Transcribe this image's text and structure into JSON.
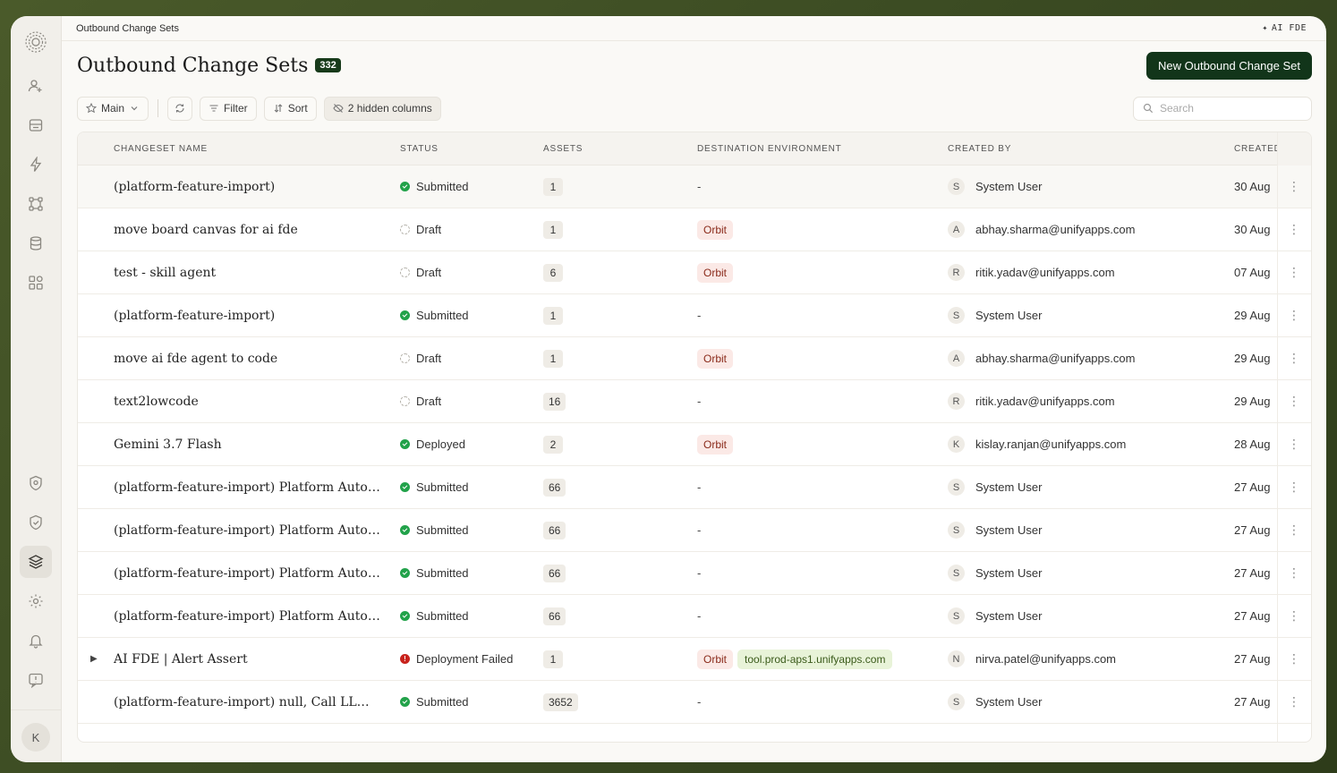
{
  "breadcrumb": "Outbound Change Sets",
  "ai_label": "AI FDE",
  "page": {
    "title": "Outbound Change Sets",
    "count": "332",
    "new_button": "New Outbound Change Set"
  },
  "toolbar": {
    "view_label": "Main",
    "filter_label": "Filter",
    "sort_label": "Sort",
    "hidden_columns_label": "2 hidden columns",
    "search_placeholder": "Search"
  },
  "sidebar": {
    "avatar_initial": "K"
  },
  "columns": {
    "name": "CHANGESET NAME",
    "status": "STATUS",
    "assets": "ASSETS",
    "destination": "DESTINATION ENVIRONMENT",
    "created_by": "CREATED BY",
    "created": "CREATED"
  },
  "rows": [
    {
      "name": "(platform-feature-import)",
      "status": "Submitted",
      "status_type": "ok",
      "assets": "1",
      "dest": "-",
      "env": "",
      "initial": "S",
      "by": "System User",
      "created": "30 Aug"
    },
    {
      "name": "move board canvas for ai fde",
      "status": "Draft",
      "status_type": "draft",
      "assets": "1",
      "dest": "Orbit",
      "env": "",
      "initial": "A",
      "by": "abhay.sharma@unifyapps.com",
      "created": "30 Aug"
    },
    {
      "name": "test - skill agent",
      "status": "Draft",
      "status_type": "draft",
      "assets": "6",
      "dest": "Orbit",
      "env": "",
      "initial": "R",
      "by": "ritik.yadav@unifyapps.com",
      "created": "07 Aug"
    },
    {
      "name": "(platform-feature-import)",
      "status": "Submitted",
      "status_type": "ok",
      "assets": "1",
      "dest": "-",
      "env": "",
      "initial": "S",
      "by": "System User",
      "created": "29 Aug"
    },
    {
      "name": "move ai fde agent to code",
      "status": "Draft",
      "status_type": "draft",
      "assets": "1",
      "dest": "Orbit",
      "env": "",
      "initial": "A",
      "by": "abhay.sharma@unifyapps.com",
      "created": "29 Aug"
    },
    {
      "name": "text2lowcode",
      "status": "Draft",
      "status_type": "draft",
      "assets": "16",
      "dest": "-",
      "env": "",
      "initial": "R",
      "by": "ritik.yadav@unifyapps.com",
      "created": "29 Aug"
    },
    {
      "name": "Gemini 3.7 Flash",
      "status": "Deployed",
      "status_type": "ok",
      "assets": "2",
      "dest": "Orbit",
      "env": "",
      "initial": "K",
      "by": "kislay.ranjan@unifyapps.com",
      "created": "28 Aug"
    },
    {
      "name": "(platform-feature-import) Platform Autom...",
      "status": "Submitted",
      "status_type": "ok",
      "assets": "66",
      "dest": "-",
      "env": "",
      "initial": "S",
      "by": "System User",
      "created": "27 Aug"
    },
    {
      "name": "(platform-feature-import) Platform Autom...",
      "status": "Submitted",
      "status_type": "ok",
      "assets": "66",
      "dest": "-",
      "env": "",
      "initial": "S",
      "by": "System User",
      "created": "27 Aug"
    },
    {
      "name": "(platform-feature-import) Platform Autom...",
      "status": "Submitted",
      "status_type": "ok",
      "assets": "66",
      "dest": "-",
      "env": "",
      "initial": "S",
      "by": "System User",
      "created": "27 Aug"
    },
    {
      "name": "(platform-feature-import) Platform Autom...",
      "status": "Submitted",
      "status_type": "ok",
      "assets": "66",
      "dest": "-",
      "env": "",
      "initial": "S",
      "by": "System User",
      "created": "27 Aug"
    },
    {
      "name": "AI FDE | Alert Assert",
      "status": "Deployment Failed",
      "status_type": "fail",
      "assets": "1",
      "dest": "Orbit",
      "env": "tool.prod-aps1.unifyapps.com",
      "initial": "N",
      "by": "nirva.patel@unifyapps.com",
      "created": "27 Aug",
      "expandable": true
    },
    {
      "name": "(platform-feature-import) null, Call LLM ...",
      "status": "Submitted",
      "status_type": "ok",
      "assets": "3652",
      "dest": "-",
      "env": "",
      "initial": "S",
      "by": "System User",
      "created": "27 Aug"
    }
  ],
  "colors": {
    "accent": "#12351a",
    "success": "#22a24a",
    "error": "#c8221c",
    "frame": "#3a4a22"
  }
}
